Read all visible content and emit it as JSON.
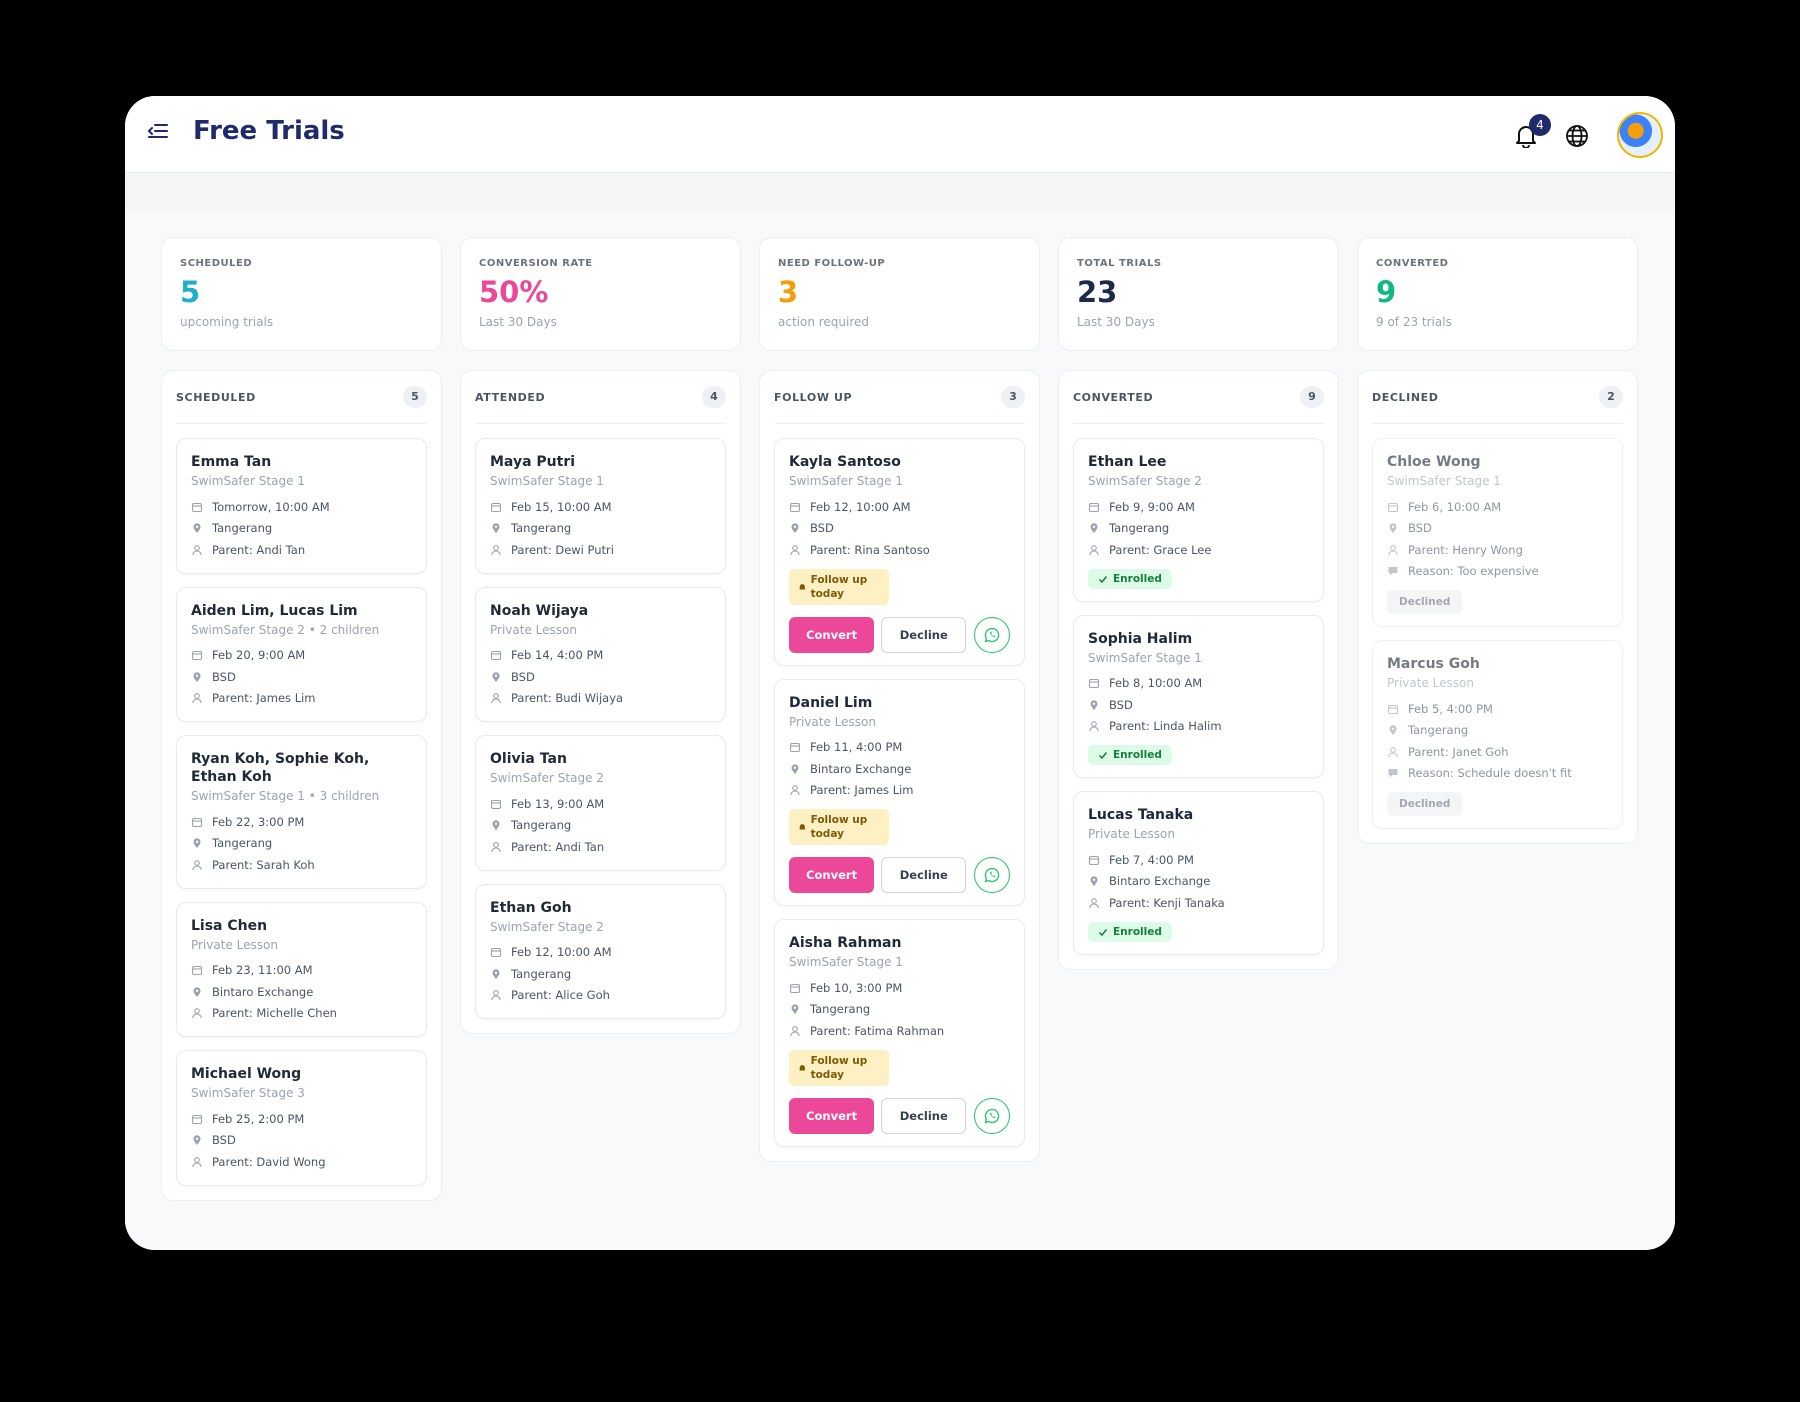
{
  "header": {
    "title": "Free Trials",
    "notifications": "4"
  },
  "stats": [
    {
      "label": "SCHEDULED",
      "value": "5",
      "caption": "upcoming trials",
      "color": "#1fb0c9"
    },
    {
      "label": "CONVERSION RATE",
      "value": "50%",
      "caption": "Last 30 Days",
      "color": "#ec4899"
    },
    {
      "label": "NEED FOLLOW-UP",
      "value": "3",
      "caption": "action required",
      "color": "#f59e0b"
    },
    {
      "label": "TOTAL TRIALS",
      "value": "23",
      "caption": "Last 30 Days",
      "color": "#1e2a4a"
    },
    {
      "label": "CONVERTED",
      "value": "9",
      "caption": "9 of 23 trials",
      "color": "#10b981"
    }
  ],
  "columns": [
    {
      "title": "SCHEDULED",
      "count": "5",
      "cards": [
        {
          "name": "Emma Tan",
          "program": "SwimSafer Stage 1",
          "date": "Tomorrow, 10:00 AM",
          "location": "Tangerang",
          "parent": "Parent: Andi Tan"
        },
        {
          "name": "Aiden Lim, Lucas Lim",
          "program": "SwimSafer Stage 2 • 2 children",
          "date": "Feb 20, 9:00 AM",
          "location": "BSD",
          "parent": "Parent: James Lim"
        },
        {
          "name": "Ryan Koh, Sophie Koh, Ethan Koh",
          "program": "SwimSafer Stage 1 • 3 children",
          "date": "Feb 22, 3:00 PM",
          "location": "Tangerang",
          "parent": "Parent: Sarah Koh"
        },
        {
          "name": "Lisa Chen",
          "program": "Private Lesson",
          "date": "Feb 23, 11:00 AM",
          "location": "Bintaro Exchange",
          "parent": "Parent: Michelle Chen"
        },
        {
          "name": "Michael Wong",
          "program": "SwimSafer Stage 3",
          "date": "Feb 25, 2:00 PM",
          "location": "BSD",
          "parent": "Parent: David Wong"
        }
      ]
    },
    {
      "title": "ATTENDED",
      "count": "4",
      "cards": [
        {
          "name": "Maya Putri",
          "program": "SwimSafer Stage 1",
          "date": "Feb 15, 10:00 AM",
          "location": "Tangerang",
          "parent": "Parent: Dewi Putri"
        },
        {
          "name": "Noah Wijaya",
          "program": "Private Lesson",
          "date": "Feb 14, 4:00 PM",
          "location": "BSD",
          "parent": "Parent: Budi Wijaya"
        },
        {
          "name": "Olivia Tan",
          "program": "SwimSafer Stage 2",
          "date": "Feb 13, 9:00 AM",
          "location": "Tangerang",
          "parent": "Parent: Andi Tan"
        },
        {
          "name": "Ethan Goh",
          "program": "SwimSafer Stage 2",
          "date": "Feb 12, 10:00 AM",
          "location": "Tangerang",
          "parent": "Parent: Alice Goh"
        }
      ]
    },
    {
      "title": "FOLLOW UP",
      "count": "3",
      "cards": [
        {
          "name": "Kayla Santoso",
          "program": "SwimSafer Stage 1",
          "date": "Feb 12, 10:00 AM",
          "location": "BSD",
          "parent": "Parent: Rina Santoso",
          "badge": "Follow up today",
          "actions": [
            "Convert",
            "Decline"
          ]
        },
        {
          "name": "Daniel Lim",
          "program": "Private Lesson",
          "date": "Feb 11, 4:00 PM",
          "location": "Bintaro Exchange",
          "parent": "Parent: James Lim",
          "badge": "Follow up today",
          "actions": [
            "Convert",
            "Decline"
          ]
        },
        {
          "name": "Aisha Rahman",
          "program": "SwimSafer Stage 1",
          "date": "Feb 10, 3:00 PM",
          "location": "Tangerang",
          "parent": "Parent: Fatima Rahman",
          "badge": "Follow up today",
          "actions": [
            "Convert",
            "Decline"
          ]
        }
      ]
    },
    {
      "title": "CONVERTED",
      "count": "9",
      "cards": [
        {
          "name": "Ethan Lee",
          "program": "SwimSafer Stage 2",
          "date": "Feb 9, 9:00 AM",
          "location": "Tangerang",
          "parent": "Parent: Grace Lee",
          "badge": "Enrolled"
        },
        {
          "name": "Sophia Halim",
          "program": "SwimSafer Stage 1",
          "date": "Feb 8, 10:00 AM",
          "location": "BSD",
          "parent": "Parent: Linda Halim",
          "badge": "Enrolled"
        },
        {
          "name": "Lucas Tanaka",
          "program": "Private Lesson",
          "date": "Feb 7, 4:00 PM",
          "location": "Bintaro Exchange",
          "parent": "Parent: Kenji Tanaka",
          "badge": "Enrolled"
        }
      ]
    },
    {
      "title": "DECLINED",
      "count": "2",
      "cards": [
        {
          "name": "Chloe Wong",
          "program": "SwimSafer Stage 1",
          "date": "Feb 6, 10:00 AM",
          "location": "BSD",
          "parent": "Parent: Henry Wong",
          "reason": "Reason: Too expensive",
          "badge": "Declined"
        },
        {
          "name": "Marcus Goh",
          "program": "Private Lesson",
          "date": "Feb 5, 4:00 PM",
          "location": "Tangerang",
          "parent": "Parent: Janet Goh",
          "reason": "Reason: Schedule doesn't fit",
          "badge": "Declined"
        }
      ]
    }
  ]
}
